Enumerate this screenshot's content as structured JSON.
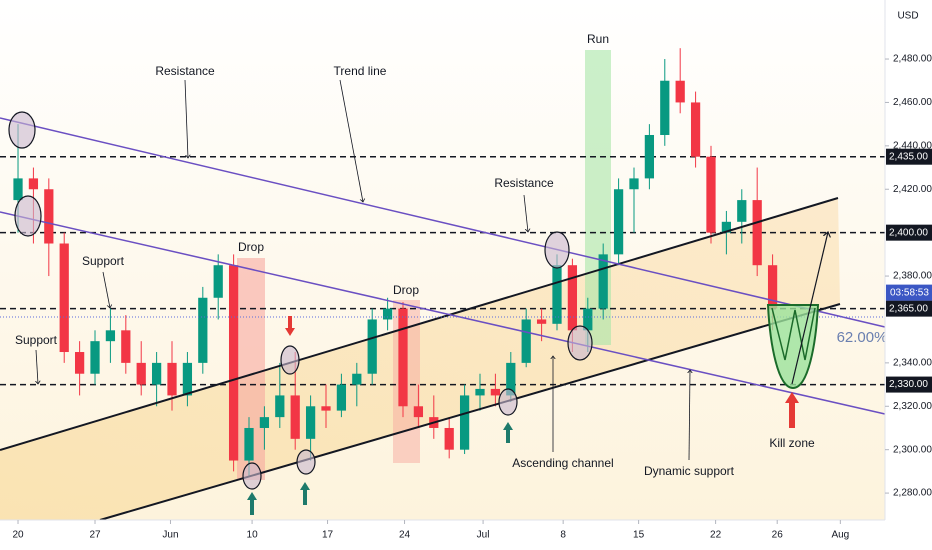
{
  "chart_data": {
    "type": "candlestick",
    "currency": "USD",
    "ylim": [
      2267.6,
      2507.2
    ],
    "yticks": [
      {
        "value": 2480,
        "label": "2,480.00"
      },
      {
        "value": 2460,
        "label": "2,460.00"
      },
      {
        "value": 2440,
        "label": "2,440.00"
      },
      {
        "value": 2420,
        "label": "2,420.00"
      },
      {
        "value": 2380,
        "label": "2,380.00"
      },
      {
        "value": 2340,
        "label": "2,340.00"
      },
      {
        "value": 2320,
        "label": "2,320.00"
      },
      {
        "value": 2300,
        "label": "2,300.00"
      },
      {
        "value": 2280,
        "label": "2,280.00"
      }
    ],
    "xlim": [
      -1.17,
      56.3
    ],
    "xticks": [
      {
        "value": 0,
        "label": "20"
      },
      {
        "value": 5,
        "label": "27"
      },
      {
        "value": 9.9,
        "label": "Jun"
      },
      {
        "value": 15.2,
        "label": "10"
      },
      {
        "value": 20.1,
        "label": "17"
      },
      {
        "value": 25.1,
        "label": "24"
      },
      {
        "value": 30.2,
        "label": "Jul"
      },
      {
        "value": 35.4,
        "label": "8"
      },
      {
        "value": 40.3,
        "label": "15"
      },
      {
        "value": 45.3,
        "label": "22"
      },
      {
        "value": 49.3,
        "label": "26"
      },
      {
        "value": 53.4,
        "label": "Aug"
      }
    ],
    "levels": [
      {
        "value": 2435,
        "label": "2,435.00"
      },
      {
        "value": 2400,
        "label": "2,400.00"
      },
      {
        "value": 2365,
        "label": "2,365.00"
      },
      {
        "value": 2330,
        "label": "2,330.00"
      }
    ],
    "up_color": "#089981",
    "down_color": "#f23645",
    "countdown": "03:58:53",
    "ohlc": [
      [
        2415,
        2450,
        2400,
        2425
      ],
      [
        2425,
        2430,
        2395,
        2420
      ],
      [
        2420,
        2425,
        2380,
        2395
      ],
      [
        2395,
        2400,
        2340,
        2345
      ],
      [
        2345,
        2350,
        2325,
        2335
      ],
      [
        2335,
        2355,
        2330,
        2350
      ],
      [
        2350,
        2365,
        2340,
        2355
      ],
      [
        2355,
        2362,
        2335,
        2340
      ],
      [
        2340,
        2350,
        2325,
        2330
      ],
      [
        2330,
        2345,
        2320,
        2340
      ],
      [
        2340,
        2350,
        2318,
        2325
      ],
      [
        2325,
        2345,
        2320,
        2340
      ],
      [
        2340,
        2375,
        2335,
        2370
      ],
      [
        2370,
        2390,
        2360,
        2385
      ],
      [
        2385,
        2390,
        2290,
        2295
      ],
      [
        2295,
        2315,
        2288,
        2310
      ],
      [
        2310,
        2320,
        2300,
        2315
      ],
      [
        2315,
        2340,
        2310,
        2325
      ],
      [
        2325,
        2345,
        2300,
        2305
      ],
      [
        2305,
        2325,
        2295,
        2320
      ],
      [
        2320,
        2330,
        2310,
        2318
      ],
      [
        2318,
        2335,
        2315,
        2330
      ],
      [
        2330,
        2340,
        2320,
        2335
      ],
      [
        2335,
        2365,
        2330,
        2360
      ],
      [
        2360,
        2370,
        2355,
        2365
      ],
      [
        2365,
        2368,
        2315,
        2320
      ],
      [
        2320,
        2330,
        2310,
        2315
      ],
      [
        2315,
        2325,
        2305,
        2310
      ],
      [
        2310,
        2315,
        2296,
        2300
      ],
      [
        2300,
        2330,
        2298,
        2325
      ],
      [
        2325,
        2335,
        2318,
        2328
      ],
      [
        2328,
        2335,
        2320,
        2325
      ],
      [
        2325,
        2345,
        2322,
        2340
      ],
      [
        2340,
        2365,
        2338,
        2360
      ],
      [
        2360,
        2365,
        2350,
        2358
      ],
      [
        2358,
        2390,
        2355,
        2385
      ],
      [
        2385,
        2388,
        2345,
        2355
      ],
      [
        2355,
        2370,
        2345,
        2365
      ],
      [
        2365,
        2395,
        2360,
        2390
      ],
      [
        2390,
        2425,
        2385,
        2420
      ],
      [
        2420,
        2430,
        2400,
        2425
      ],
      [
        2425,
        2450,
        2420,
        2445
      ],
      [
        2445,
        2480,
        2440,
        2470
      ],
      [
        2470,
        2485,
        2455,
        2460
      ],
      [
        2460,
        2465,
        2430,
        2435
      ],
      [
        2435,
        2440,
        2395,
        2400
      ],
      [
        2400,
        2410,
        2390,
        2405
      ],
      [
        2405,
        2420,
        2395,
        2415
      ],
      [
        2415,
        2430,
        2380,
        2385
      ],
      [
        2385,
        2390,
        2355,
        2365
      ]
    ],
    "annotations": {
      "resistance_top": "Resistance",
      "trend_line": "Trend line",
      "support_upper": "Support",
      "support_lower": "Support",
      "drop_1": "Drop",
      "drop_2": "Drop",
      "run": "Run",
      "resistance_mid": "Resistance",
      "ascending_channel": "Ascending channel",
      "dynamic_support": "Dynamic support",
      "kill_zone": "Kill zone",
      "fib": "62.00%"
    }
  }
}
